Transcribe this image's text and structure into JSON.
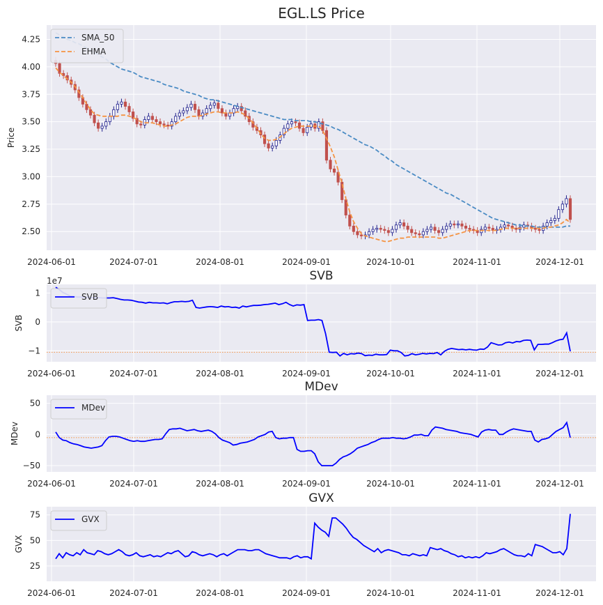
{
  "chart_data": [
    {
      "type": "candlestick",
      "title": "EGL.LS Price",
      "ylabel": "Price",
      "ylim": [
        2.33,
        4.38
      ],
      "yticks": [
        "2.50",
        "2.75",
        "3.00",
        "3.25",
        "3.50",
        "3.75",
        "4.00",
        "4.25"
      ],
      "xticks": [
        "2024-06-01",
        "2024-07-01",
        "2024-08-01",
        "2024-09-01",
        "2024-10-01",
        "2024-11-01",
        "2024-12-01"
      ],
      "legend": {
        "placement": "top-left",
        "entries": [
          "SMA_50",
          "EHMA"
        ]
      },
      "colors": {
        "up": "#1f1f8c",
        "down": "#c0504d",
        "SMA_50": "#4a8bc4",
        "EHMA": "#f59342"
      },
      "close": [
        4.03,
        3.94,
        3.92,
        3.88,
        3.84,
        3.79,
        3.72,
        3.66,
        3.61,
        3.56,
        3.49,
        3.44,
        3.46,
        3.5,
        3.55,
        3.61,
        3.66,
        3.68,
        3.64,
        3.59,
        3.53,
        3.48,
        3.47,
        3.52,
        3.55,
        3.52,
        3.5,
        3.48,
        3.47,
        3.46,
        3.5,
        3.55,
        3.58,
        3.6,
        3.63,
        3.66,
        3.61,
        3.55,
        3.58,
        3.62,
        3.65,
        3.67,
        3.62,
        3.58,
        3.55,
        3.58,
        3.62,
        3.64,
        3.6,
        3.55,
        3.5,
        3.45,
        3.42,
        3.38,
        3.3,
        3.26,
        3.28,
        3.33,
        3.38,
        3.44,
        3.48,
        3.5,
        3.49,
        3.44,
        3.4,
        3.45,
        3.48,
        3.44,
        3.5,
        3.42,
        3.15,
        3.07,
        3.04,
        2.95,
        2.79,
        2.65,
        2.55,
        2.5,
        2.47,
        2.46,
        2.47,
        2.5,
        2.52,
        2.53,
        2.52,
        2.51,
        2.49,
        2.52,
        2.56,
        2.58,
        2.55,
        2.52,
        2.49,
        2.48,
        2.47,
        2.5,
        2.52,
        2.54,
        2.51,
        2.49,
        2.52,
        2.55,
        2.57,
        2.56,
        2.57,
        2.55,
        2.53,
        2.52,
        2.51,
        2.49,
        2.52,
        2.54,
        2.53,
        2.51,
        2.52,
        2.54,
        2.56,
        2.55,
        2.53,
        2.52,
        2.54,
        2.56,
        2.55,
        2.53,
        2.52,
        2.51,
        2.55,
        2.58,
        2.6,
        2.62,
        2.7,
        2.75,
        2.8,
        2.61
      ],
      "series": [
        {
          "name": "SMA_50",
          "values": [
            4.31,
            4.29,
            4.27,
            4.25,
            4.24,
            4.22,
            4.21,
            4.19,
            4.17,
            4.15,
            4.13,
            4.11,
            4.09,
            4.07,
            4.04,
            4.02,
            4,
            3.98,
            3.97,
            3.96,
            3.95,
            3.93,
            3.91,
            3.9,
            3.89,
            3.88,
            3.87,
            3.86,
            3.84,
            3.83,
            3.82,
            3.81,
            3.8,
            3.78,
            3.77,
            3.76,
            3.75,
            3.74,
            3.72,
            3.71,
            3.7,
            3.7,
            3.69,
            3.68,
            3.67,
            3.66,
            3.65,
            3.64,
            3.63,
            3.62,
            3.61,
            3.6,
            3.59,
            3.58,
            3.57,
            3.56,
            3.55,
            3.54,
            3.53,
            3.52,
            3.52,
            3.52,
            3.51,
            3.51,
            3.51,
            3.51,
            3.5,
            3.5,
            3.49,
            3.48,
            3.47,
            3.46,
            3.44,
            3.43,
            3.41,
            3.39,
            3.37,
            3.35,
            3.33,
            3.31,
            3.29,
            3.28,
            3.26,
            3.24,
            3.21,
            3.19,
            3.16,
            3.14,
            3.11,
            3.09,
            3.07,
            3.05,
            3.03,
            3.01,
            2.99,
            2.97,
            2.95,
            2.93,
            2.91,
            2.89,
            2.87,
            2.85,
            2.84,
            2.82,
            2.8,
            2.78,
            2.76,
            2.74,
            2.72,
            2.7,
            2.68,
            2.66,
            2.64,
            2.62,
            2.61,
            2.6,
            2.59,
            2.58,
            2.57,
            2.56,
            2.56,
            2.55,
            2.55,
            2.55,
            2.54,
            2.54,
            2.54,
            2.54,
            2.54,
            2.54,
            2.54,
            2.54,
            2.55,
            2.55
          ]
        },
        {
          "name": "EHMA",
          "values": [
            3.99,
            3.95,
            3.92,
            3.89,
            3.86,
            3.82,
            3.77,
            3.72,
            3.66,
            3.61,
            3.57,
            3.56,
            3.55,
            3.55,
            3.55,
            3.55,
            3.55,
            3.56,
            3.56,
            3.55,
            3.54,
            3.52,
            3.5,
            3.49,
            3.49,
            3.49,
            3.48,
            3.47,
            3.46,
            3.46,
            3.47,
            3.48,
            3.5,
            3.52,
            3.54,
            3.55,
            3.55,
            3.55,
            3.56,
            3.57,
            3.58,
            3.59,
            3.59,
            3.58,
            3.58,
            3.58,
            3.58,
            3.59,
            3.58,
            3.56,
            3.53,
            3.49,
            3.44,
            3.39,
            3.35,
            3.33,
            3.33,
            3.34,
            3.36,
            3.39,
            3.42,
            3.44,
            3.45,
            3.46,
            3.46,
            3.46,
            3.46,
            3.46,
            3.46,
            3.42,
            3.35,
            3.27,
            3.18,
            3.06,
            2.94,
            2.8,
            2.68,
            2.59,
            2.53,
            2.48,
            2.46,
            2.45,
            2.44,
            2.43,
            2.42,
            2.41,
            2.41,
            2.42,
            2.43,
            2.44,
            2.44,
            2.45,
            2.45,
            2.45,
            2.45,
            2.45,
            2.45,
            2.45,
            2.45,
            2.44,
            2.44,
            2.45,
            2.46,
            2.47,
            2.48,
            2.49,
            2.5,
            2.51,
            2.51,
            2.51,
            2.51,
            2.51,
            2.51,
            2.51,
            2.51,
            2.52,
            2.53,
            2.53,
            2.53,
            2.53,
            2.53,
            2.53,
            2.53,
            2.53,
            2.53,
            2.53,
            2.53,
            2.54,
            2.54,
            2.55,
            2.56,
            2.58,
            2.61,
            2.58
          ]
        }
      ]
    },
    {
      "type": "line",
      "title": "SVB",
      "ylabel": "SVB",
      "offset_label": "1e7",
      "ylim": [
        -1.38,
        1.3
      ],
      "yticks": [
        "−1",
        "0",
        "1"
      ],
      "xticks": [
        "2024-06-01",
        "2024-07-01",
        "2024-08-01",
        "2024-09-01",
        "2024-10-01",
        "2024-11-01",
        "2024-12-01"
      ],
      "legend": {
        "placement": "top-left",
        "entries": [
          "SVB"
        ]
      },
      "reference_line": -1.05,
      "colors": {
        "line": "#0000ff",
        "reference": "#f59342"
      },
      "series": [
        {
          "name": "SVB",
          "values": [
            1.2,
            1.12,
            1.02,
            0.96,
            0.9,
            0.88,
            0.86,
            0.86,
            0.85,
            0.85,
            0.84,
            0.84,
            0.84,
            0.83,
            0.83,
            0.83,
            0.84,
            0.81,
            0.78,
            0.76,
            0.76,
            0.75,
            0.72,
            0.69,
            0.68,
            0.65,
            0.68,
            0.66,
            0.66,
            0.65,
            0.66,
            0.63,
            0.67,
            0.7,
            0.7,
            0.71,
            0.7,
            0.71,
            0.75,
            0.5,
            0.48,
            0.5,
            0.52,
            0.53,
            0.52,
            0.5,
            0.55,
            0.52,
            0.53,
            0.5,
            0.51,
            0.48,
            0.55,
            0.52,
            0.55,
            0.57,
            0.57,
            0.58,
            0.6,
            0.61,
            0.63,
            0.65,
            0.6,
            0.63,
            0.68,
            0.6,
            0.55,
            0.59,
            0.58,
            0.6,
            0.05,
            0.06,
            0.06,
            0.08,
            0.05,
            -0.41,
            -1.05,
            -1.06,
            -1.05,
            -1.18,
            -1.09,
            -1.14,
            -1.1,
            -1.11,
            -1.08,
            -1.1,
            -1.17,
            -1.15,
            -1.16,
            -1.12,
            -1.14,
            -1.14,
            -1.13,
            -0.98,
            -1,
            -1,
            -1.06,
            -1.18,
            -1.16,
            -1.1,
            -1.14,
            -1.12,
            -1.09,
            -1.11,
            -1.09,
            -1.1,
            -1.06,
            -1.14,
            -1.02,
            -0.95,
            -0.92,
            -0.94,
            -0.96,
            -0.95,
            -0.97,
            -0.95,
            -0.97,
            -0.98,
            -0.94,
            -0.95,
            -0.87,
            -0.72,
            -0.76,
            -0.8,
            -0.79,
            -0.72,
            -0.7,
            -0.73,
            -0.68,
            -0.69,
            -0.64,
            -0.63,
            -0.64,
            -0.97,
            -0.78,
            -0.78,
            -0.77,
            -0.77,
            -0.72,
            -0.66,
            -0.62,
            -0.6,
            -0.38,
            -1.02
          ]
        }
      ]
    },
    {
      "type": "line",
      "title": "MDev",
      "ylabel": "MDev",
      "ylim": [
        -60,
        63
      ],
      "yticks": [
        "−50",
        "0",
        "50"
      ],
      "xticks": [
        "2024-06-01",
        "2024-07-01",
        "2024-08-01",
        "2024-09-01",
        "2024-10-01",
        "2024-11-01",
        "2024-12-01"
      ],
      "legend": {
        "placement": "top-left",
        "entries": [
          "MDev"
        ]
      },
      "reference_line": -5,
      "colors": {
        "line": "#0000ff",
        "reference": "#f59342"
      },
      "series": [
        {
          "name": "MDev",
          "values": [
            4,
            -5,
            -9,
            -10,
            -13,
            -15,
            -16,
            -18,
            -20,
            -21,
            -22,
            -21,
            -20,
            -18,
            -10,
            -4,
            -3,
            -3,
            -4,
            -6,
            -8,
            -10,
            -11,
            -10,
            -11,
            -11,
            -10,
            -9,
            -8,
            -8,
            -7,
            1,
            8,
            9,
            9,
            10,
            8,
            6,
            7,
            8,
            6,
            5,
            6,
            7,
            5,
            1,
            -5,
            -9,
            -11,
            -13,
            -17,
            -16,
            -14,
            -13,
            -12,
            -10,
            -8,
            -4,
            -2,
            0,
            4,
            5,
            -5,
            -7,
            -6,
            -6,
            -5,
            -5,
            -24,
            -27,
            -27,
            -26,
            -26,
            -31,
            -44,
            -50,
            -50,
            -50,
            -50,
            -46,
            -40,
            -36,
            -34,
            -31,
            -27,
            -22,
            -20,
            -18,
            -16,
            -13,
            -11,
            -8,
            -6,
            -6,
            -6,
            -5,
            -6,
            -6,
            -7,
            -6,
            -4,
            -1,
            -1,
            0,
            -2,
            -2,
            7,
            12,
            11,
            10,
            8,
            7,
            6,
            5,
            3,
            2,
            1,
            0,
            -2,
            -4,
            4,
            7,
            8,
            7,
            7,
            0,
            0,
            4,
            7,
            9,
            8,
            7,
            6,
            5,
            5,
            -9,
            -12,
            -8,
            -7,
            -5,
            0,
            5,
            8,
            11,
            19,
            -5
          ]
        }
      ]
    },
    {
      "type": "line",
      "title": "GVX",
      "ylabel": "GVX",
      "ylim": [
        10,
        83
      ],
      "yticks": [
        "25",
        "50",
        "75"
      ],
      "xticks": [
        "2024-06-01",
        "2024-07-01",
        "2024-08-01",
        "2024-09-01",
        "2024-10-01",
        "2024-11-01",
        "2024-12-01"
      ],
      "legend": {
        "placement": "top-left",
        "entries": [
          "GVX"
        ]
      },
      "colors": {
        "line": "#0000ff"
      },
      "series": [
        {
          "name": "GVX",
          "values": [
            32,
            37,
            33,
            38,
            36,
            35,
            38,
            36,
            41,
            38,
            37,
            36,
            40,
            39,
            37,
            36,
            37,
            39,
            41,
            39,
            36,
            35,
            36,
            38,
            35,
            34,
            35,
            36,
            34,
            35,
            34,
            36,
            38,
            37,
            39,
            40,
            37,
            34,
            35,
            39,
            38,
            36,
            35,
            36,
            37,
            36,
            34,
            36,
            37,
            35,
            37,
            39,
            41,
            41,
            41,
            40,
            40,
            41,
            41,
            39,
            37,
            36,
            35,
            34,
            33,
            33,
            33,
            32,
            34,
            35,
            33,
            34,
            34,
            32,
            67,
            63,
            60,
            58,
            54,
            72,
            72,
            69,
            66,
            62,
            57,
            53,
            51,
            48,
            45,
            43,
            41,
            39,
            42,
            38,
            40,
            41,
            40,
            39,
            38,
            36,
            36,
            35,
            37,
            36,
            35,
            36,
            35,
            43,
            42,
            41,
            42,
            40,
            39,
            37,
            36,
            34,
            35,
            33,
            34,
            33,
            34,
            33,
            35,
            38,
            37,
            38,
            39,
            41,
            42,
            40,
            38,
            36,
            35,
            35,
            34,
            37,
            35,
            46,
            45,
            44,
            42,
            40,
            38,
            38,
            39,
            36,
            42,
            76
          ]
        }
      ]
    }
  ]
}
